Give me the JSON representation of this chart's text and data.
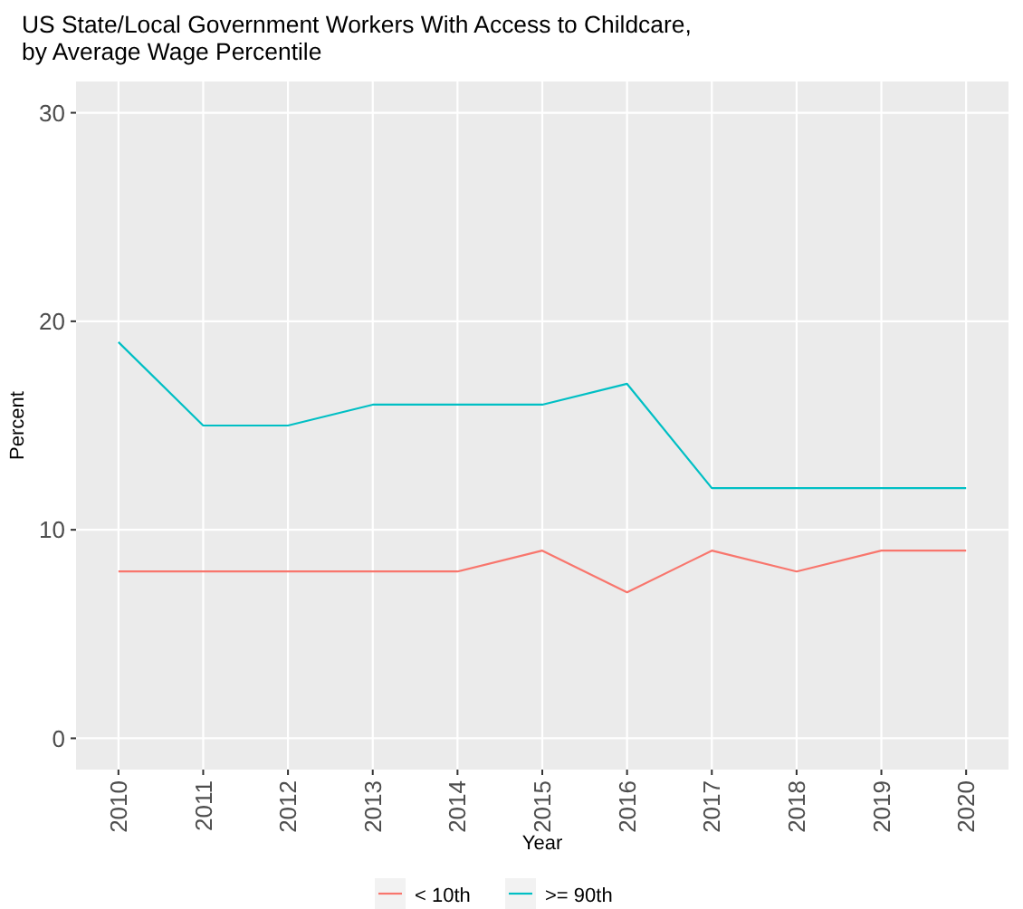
{
  "chart_data": {
    "type": "line",
    "title": "US State/Local Government Workers With Access to Childcare,\nby Average Wage Percentile",
    "xlabel": "Year",
    "ylabel": "Percent",
    "x": [
      2010,
      2011,
      2012,
      2013,
      2014,
      2015,
      2016,
      2017,
      2018,
      2019,
      2020
    ],
    "series": [
      {
        "name": "< 10th",
        "color": "#f8766d",
        "values": [
          8,
          8,
          8,
          8,
          8,
          9,
          7,
          9,
          8,
          9,
          9
        ]
      },
      {
        "name": ">= 90th",
        "color": "#00bfc4",
        "values": [
          19,
          15,
          15,
          16,
          16,
          16,
          17,
          12,
          12,
          12,
          12
        ]
      }
    ],
    "xlim": [
      2009.5,
      2020.5
    ],
    "xticks": [
      2010,
      2011,
      2012,
      2013,
      2014,
      2015,
      2016,
      2017,
      2018,
      2019,
      2020
    ],
    "ylim": [
      -1.5,
      31.5
    ],
    "yticks": [
      0,
      10,
      20,
      30
    ],
    "grid": true,
    "legend": "bottom",
    "marker": "none",
    "line_style": "solid"
  }
}
